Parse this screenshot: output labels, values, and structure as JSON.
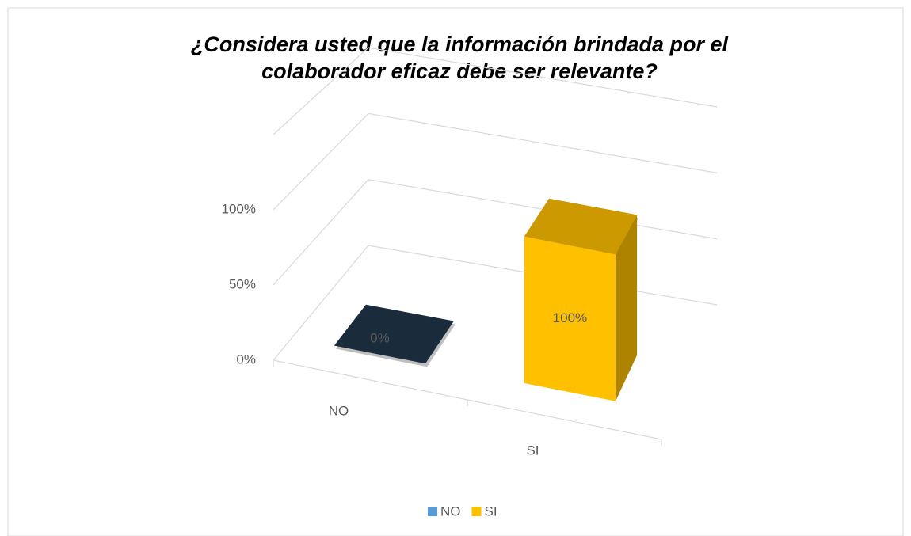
{
  "chart_data": {
    "type": "bar",
    "title": "¿Considera usted que la información brindada por el colaborador eficaz debe ser relevante?",
    "categories": [
      "NO",
      "SI"
    ],
    "values": [
      0,
      100
    ],
    "value_labels": [
      "0%",
      "100%"
    ],
    "colors": [
      "#5b9bd5",
      "#ffc000"
    ],
    "ylim": [
      0,
      150
    ],
    "yticks": [
      {
        "value": 0,
        "label": "0%"
      },
      {
        "value": 50,
        "label": "50%"
      },
      {
        "value": 100,
        "label": "100%"
      }
    ],
    "grid": true,
    "legend": "bottom"
  }
}
